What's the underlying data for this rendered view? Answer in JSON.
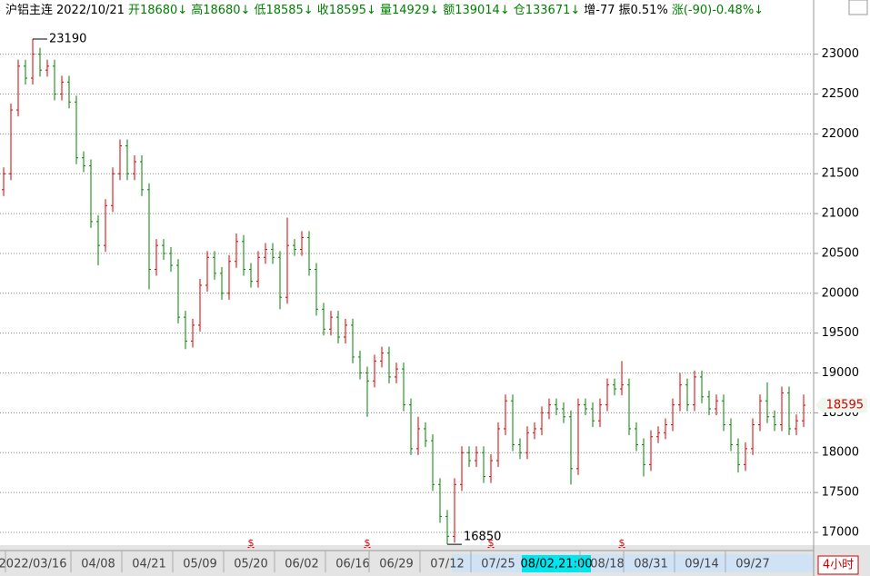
{
  "chart_data": {
    "type": "ohlc",
    "header": {
      "name": "沪铝主连",
      "date": "2022/10/21",
      "fields": [
        {
          "text": "开18680↓",
          "color": "#008000"
        },
        {
          "text": "高18680↓",
          "color": "#008000"
        },
        {
          "text": "低18585↓",
          "color": "#008000"
        },
        {
          "text": "收18595↓",
          "color": "#008000"
        },
        {
          "text": "量14929↓",
          "color": "#008000"
        },
        {
          "text": "额139014↓",
          "color": "#008000"
        },
        {
          "text": "仓133671↓",
          "color": "#008000"
        },
        {
          "text": "增-77",
          "color": "#000000"
        },
        {
          "text": "振0.51%",
          "color": "#000000"
        },
        {
          "text": "涨(-90)-0.48%↓",
          "color": "#008000"
        }
      ]
    },
    "categories": [
      null,
      null,
      null,
      null,
      "2022/03/16",
      null,
      null,
      null,
      null,
      null,
      null,
      null,
      null,
      "04/08",
      null,
      null,
      null,
      null,
      null,
      null,
      "04/21",
      null,
      null,
      null,
      null,
      null,
      null,
      "05/09",
      null,
      null,
      null,
      null,
      null,
      null,
      "05/20",
      null,
      null,
      null,
      null,
      null,
      null,
      "06/02",
      null,
      null,
      null,
      null,
      null,
      null,
      "06/16",
      null,
      null,
      null,
      null,
      null,
      "06/29",
      null,
      null,
      null,
      null,
      null,
      null,
      "07/12",
      null,
      null,
      null,
      null,
      null,
      null,
      "07/25",
      null,
      null,
      null,
      null,
      null,
      null,
      null,
      "08/02,21:00",
      null,
      null,
      null,
      null,
      null,
      null,
      "08/18",
      null,
      null,
      null,
      null,
      null,
      "08/31",
      null,
      null,
      null,
      null,
      null,
      null,
      "09/14",
      null,
      null,
      null,
      null,
      null,
      null,
      "09/27",
      null,
      null,
      null,
      null,
      null,
      null,
      null
    ],
    "cursor_index": 76,
    "open": [
      21300,
      21500,
      22300,
      22850,
      22700,
      23000,
      22800,
      22850,
      22500,
      22650,
      22400,
      21700,
      21600,
      20900,
      20600,
      21100,
      21500,
      21850,
      21500,
      21650,
      21300,
      20300,
      20600,
      20500,
      20350,
      19700,
      19400,
      19600,
      20100,
      20450,
      20250,
      20000,
      20400,
      20650,
      20300,
      20150,
      20450,
      20550,
      20450,
      19950,
      20600,
      20550,
      20700,
      20300,
      19800,
      19550,
      19700,
      19450,
      19600,
      19200,
      19000,
      18900,
      19150,
      19250,
      18950,
      19050,
      18600,
      18050,
      18300,
      18150,
      17600,
      17200,
      16950,
      17600,
      18000,
      17900,
      18000,
      17700,
      17900,
      18300,
      18650,
      18100,
      18000,
      18250,
      18300,
      18500,
      18600,
      18550,
      18450,
      17800,
      18600,
      18550,
      18400,
      18600,
      18850,
      18800,
      18850,
      18300,
      18100,
      17850,
      18200,
      18250,
      18350,
      18600,
      18850,
      18600,
      18950,
      18700,
      18550,
      18650,
      18350,
      18100,
      17850,
      18050,
      18350,
      18650,
      18450,
      18350,
      18750,
      18300,
      18400
    ],
    "high": [
      21580,
      22380,
      22930,
      22930,
      23190,
      23080,
      22930,
      22930,
      22730,
      22730,
      22480,
      21780,
      21680,
      20980,
      21180,
      21580,
      21930,
      21930,
      21730,
      21730,
      21380,
      20680,
      20680,
      20580,
      20430,
      19780,
      19680,
      20180,
      20530,
      20530,
      20330,
      20480,
      20750,
      20730,
      20380,
      20530,
      20630,
      20630,
      20530,
      20950,
      20680,
      20780,
      20780,
      20380,
      19880,
      19780,
      19780,
      19680,
      19680,
      19280,
      19080,
      19230,
      19330,
      19330,
      19130,
      19130,
      18680,
      18450,
      18380,
      18230,
      17680,
      17280,
      17680,
      18080,
      18080,
      18080,
      18080,
      17980,
      18380,
      18730,
      18730,
      18180,
      18330,
      18380,
      18580,
      18680,
      18680,
      18630,
      18530,
      18680,
      18680,
      18630,
      18680,
      18930,
      18930,
      19150,
      18930,
      18380,
      18180,
      18280,
      18330,
      18430,
      18680,
      19000,
      18930,
      19030,
      19030,
      18780,
      18730,
      18730,
      18430,
      18180,
      18130,
      18430,
      18730,
      18880,
      18530,
      18830,
      18830,
      18480,
      18730
    ],
    "low": [
      21220,
      21420,
      22220,
      22620,
      22620,
      22720,
      22720,
      22420,
      22420,
      22320,
      21620,
      21520,
      20820,
      20350,
      20520,
      21020,
      21420,
      21420,
      21420,
      21220,
      20050,
      20220,
      20420,
      20270,
      19620,
      19300,
      19320,
      19520,
      20020,
      20170,
      19920,
      19920,
      20320,
      20220,
      20070,
      20070,
      20370,
      20370,
      19800,
      19870,
      20470,
      20470,
      20220,
      19720,
      19470,
      19470,
      19370,
      19370,
      19120,
      18920,
      18450,
      18820,
      19070,
      18870,
      18870,
      18520,
      17970,
      17970,
      18070,
      17520,
      17120,
      16850,
      16870,
      17520,
      17820,
      17820,
      17620,
      17620,
      17820,
      18220,
      18020,
      17920,
      17920,
      18170,
      18220,
      18420,
      18470,
      18370,
      17600,
      17720,
      18470,
      18320,
      18320,
      18520,
      18720,
      18720,
      18220,
      18020,
      17700,
      17770,
      18120,
      18170,
      18270,
      18520,
      18520,
      18520,
      18620,
      18470,
      18470,
      18270,
      18020,
      17750,
      17770,
      17970,
      18270,
      18370,
      18270,
      18270,
      18220,
      18220,
      18320
    ],
    "close": [
      21500,
      22300,
      22850,
      22700,
      23000,
      22800,
      22850,
      22500,
      22650,
      22400,
      21700,
      21600,
      20900,
      20600,
      21100,
      21500,
      21850,
      21500,
      21650,
      21300,
      20300,
      20600,
      20500,
      20350,
      19700,
      19400,
      19600,
      20100,
      20450,
      20250,
      20000,
      20400,
      20650,
      20300,
      20150,
      20450,
      20550,
      20450,
      19950,
      20600,
      20550,
      20700,
      20300,
      19800,
      19550,
      19700,
      19450,
      19600,
      19200,
      19000,
      18900,
      19150,
      19250,
      18950,
      19050,
      18600,
      18050,
      18300,
      18150,
      17600,
      17200,
      16950,
      17600,
      18000,
      17900,
      18000,
      17700,
      17900,
      18300,
      18650,
      18100,
      18000,
      18250,
      18300,
      18500,
      18600,
      18550,
      18450,
      17800,
      18600,
      18550,
      18400,
      18600,
      18850,
      18800,
      18850,
      18300,
      18100,
      17850,
      18200,
      18250,
      18350,
      18600,
      18850,
      18600,
      18950,
      18700,
      18550,
      18650,
      18350,
      18100,
      17850,
      18050,
      18350,
      18650,
      18450,
      18350,
      18750,
      18300,
      18400,
      18595
    ],
    "up_color": "#d00000",
    "down_color": "#008000",
    "max_label": 23190,
    "min_label": 16850,
    "last_price": 18595,
    "signals": {
      "label": "$",
      "x": [
        34,
        50,
        67,
        85
      ],
      "color": "#d00000"
    },
    "period": "4小时",
    "ylim": [
      16840,
      23680
    ],
    "yticks": [
      17000,
      17500,
      18000,
      18500,
      19000,
      19500,
      20000,
      20500,
      21000,
      21500,
      22000,
      22500,
      23000
    ],
    "grid": true
  }
}
